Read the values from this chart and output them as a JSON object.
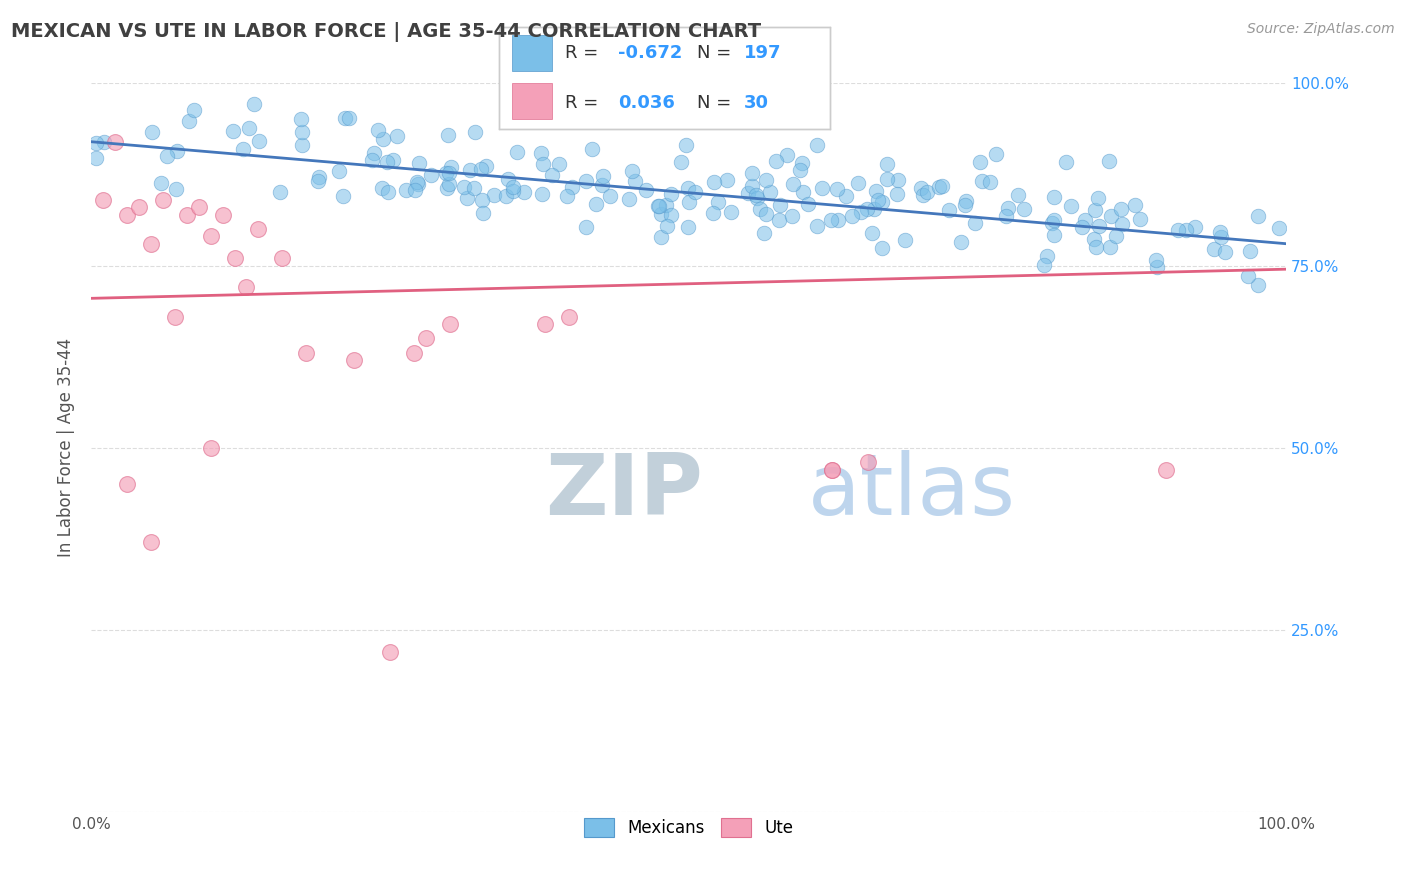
{
  "title": "MEXICAN VS UTE IN LABOR FORCE | AGE 35-44 CORRELATION CHART",
  "source_text": "Source: ZipAtlas.com",
  "ylabel": "In Labor Force | Age 35-44",
  "xlim": [
    0.0,
    1.0
  ],
  "ylim": [
    0.0,
    1.0
  ],
  "x_ticks": [
    0.0,
    0.25,
    0.5,
    0.75,
    1.0
  ],
  "y_ticks": [
    0.0,
    0.25,
    0.5,
    0.75,
    1.0
  ],
  "x_tick_labels": [
    "0.0%",
    "",
    "",
    "",
    "100.0%"
  ],
  "y_tick_labels_right": [
    "",
    "25.0%",
    "50.0%",
    "75.0%",
    "100.0%"
  ],
  "mexicans_color": "#7bbfe8",
  "mexicans_edge_color": "#5599cc",
  "ute_color": "#f4a0b8",
  "ute_edge_color": "#e07090",
  "mexicans_line_color": "#4477bb",
  "ute_line_color": "#e06080",
  "legend_label_mexicans": "Mexicans",
  "legend_label_ute": "Ute",
  "watermark_zip_color": "#b0bec5",
  "watermark_atlas_color": "#90caf9",
  "grid_color": "#dddddd",
  "background_color": "#ffffff",
  "title_color": "#404040",
  "axis_label_color": "#555555",
  "tick_color_right": "#3399ff",
  "tick_color_x": "#555555",
  "seed": 42,
  "mex_line_start_y": 0.92,
  "mex_line_end_y": 0.78,
  "ute_line_start_y": 0.705,
  "ute_line_end_y": 0.745
}
